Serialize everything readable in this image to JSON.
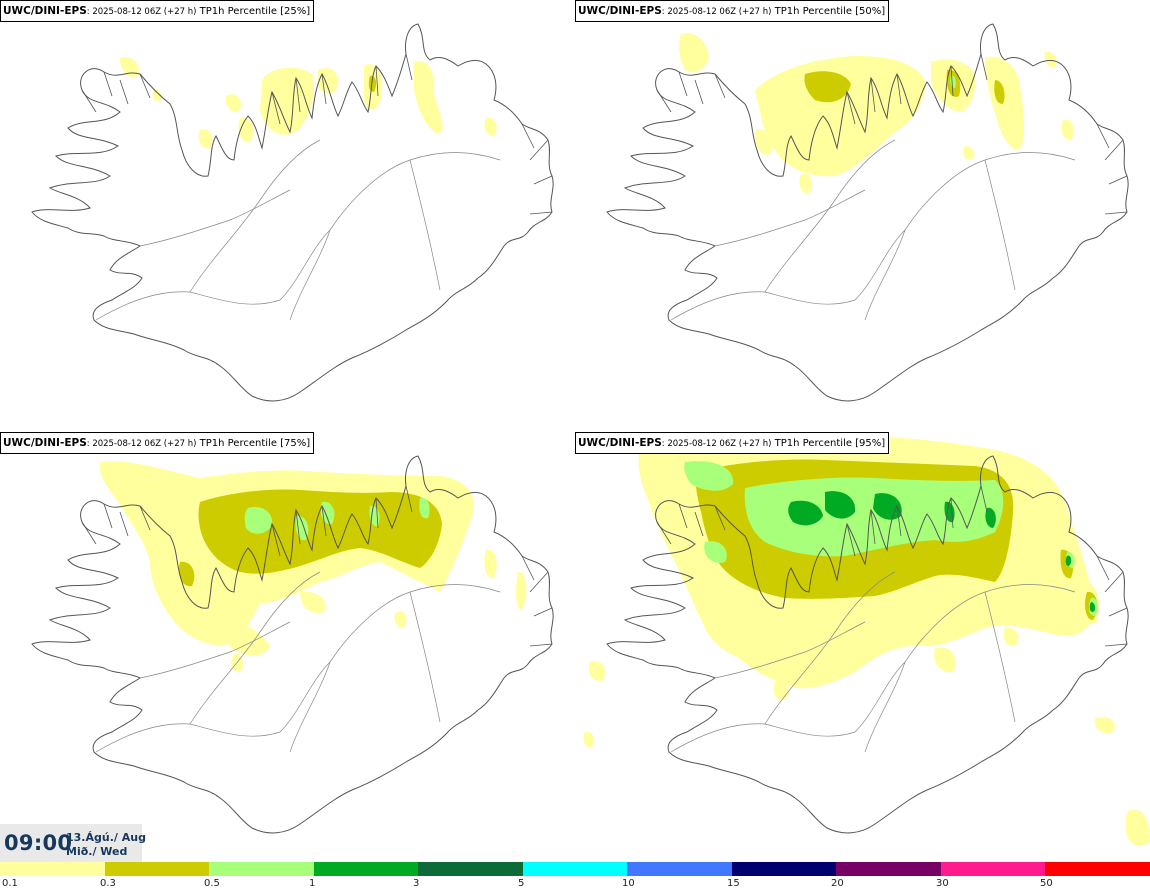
{
  "panels": [
    {
      "model": "UWC/DINI-EPS",
      "run": ": 2025-08-12 06Z (+27 h)",
      "param": " TP1h Percentile [25%]"
    },
    {
      "model": "UWC/DINI-EPS",
      "run": ": 2025-08-12 06Z (+27 h)",
      "param": " TP1h Percentile [50%]"
    },
    {
      "model": "UWC/DINI-EPS",
      "run": ": 2025-08-12 06Z (+27 h)",
      "param": " TP1h Percentile [75%]"
    },
    {
      "model": "UWC/DINI-EPS",
      "run": ": 2025-08-12 06Z (+27 h)",
      "param": " TP1h Percentile [95%]"
    }
  ],
  "valid_time": {
    "time": "09:00",
    "date_line1": "13.Ágú./ Aug",
    "date_line2": "Mið./ Wed"
  },
  "legend": {
    "colors": [
      "#ffff9e",
      "#cccc00",
      "#a8ff7a",
      "#00aa22",
      "#0d6b3a",
      "#00ffff",
      "#4277ff",
      "#00006e",
      "#770065",
      "#ff1b8d",
      "#ff0000"
    ],
    "ticks": [
      "0.1",
      "0.3",
      "0.5",
      "1",
      "3",
      "5",
      "10",
      "15",
      "20",
      "30",
      "50"
    ]
  },
  "map_colors": {
    "coast": "#555555",
    "roads": "#888888",
    "light_precip": "#ffff9e",
    "olive_precip": "#cccc00",
    "lightgreen_precip": "#a8ff7a",
    "green_precip": "#00aa22"
  }
}
